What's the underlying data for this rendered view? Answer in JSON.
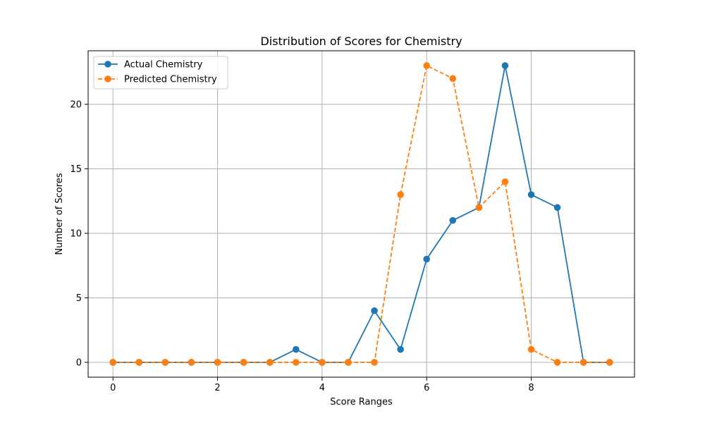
{
  "chart_data": {
    "type": "line",
    "title": "Distribution of Scores for Chemistry",
    "xlabel": "Score Ranges",
    "ylabel": "Number of Scores",
    "x": [
      0,
      0.5,
      1,
      1.5,
      2,
      2.5,
      3,
      3.5,
      4,
      4.5,
      5,
      5.5,
      6,
      6.5,
      7,
      7.5,
      8,
      8.5,
      9,
      9.5
    ],
    "xlim": [
      -0.475,
      9.975
    ],
    "ylim": [
      -1.15,
      24.15
    ],
    "xticks": [
      0,
      2,
      4,
      6,
      8
    ],
    "yticks": [
      0,
      5,
      10,
      15,
      20
    ],
    "grid": true,
    "legend_position": "top-left",
    "series": [
      {
        "name": "Actual Chemistry",
        "color": "#1f77b4",
        "linestyle": "solid",
        "marker": "circle",
        "values": [
          0,
          0,
          0,
          0,
          0,
          0,
          0,
          1,
          0,
          0,
          4,
          1,
          8,
          11,
          12,
          23,
          13,
          12,
          0,
          0
        ]
      },
      {
        "name": "Predicted Chemistry",
        "color": "#ff7f0e",
        "linestyle": "dashed",
        "marker": "circle",
        "values": [
          0,
          0,
          0,
          0,
          0,
          0,
          0,
          0,
          0,
          0,
          0,
          13,
          23,
          22,
          12,
          14,
          1,
          0,
          0,
          0
        ]
      }
    ]
  }
}
